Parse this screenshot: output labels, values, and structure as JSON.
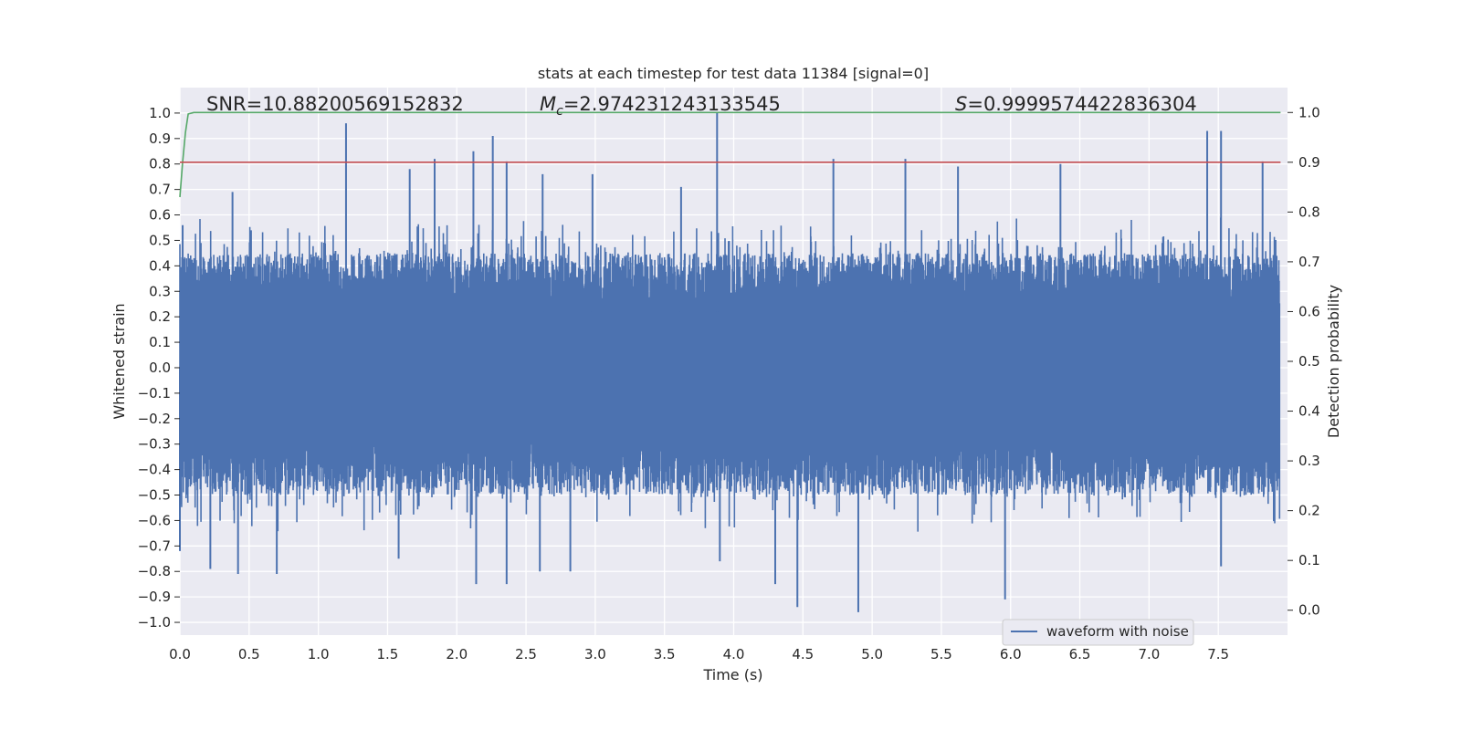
{
  "chart_data": {
    "type": "line",
    "title": "stats at each timestep for test data 11384 [signal=0]",
    "xlabel": "Time (s)",
    "ylabel": "Whitened strain",
    "y2label": "Detection probability",
    "xlim": [
      0.0,
      8.0
    ],
    "ylim": [
      -1.05,
      1.1
    ],
    "y2lim": [
      -0.05,
      1.05
    ],
    "x_ticks": [
      0.0,
      0.5,
      1.0,
      1.5,
      2.0,
      2.5,
      3.0,
      3.5,
      4.0,
      4.5,
      5.0,
      5.5,
      6.0,
      6.5,
      7.0,
      7.5
    ],
    "x_tick_labels": [
      "0.0",
      "0.5",
      "1.0",
      "1.5",
      "2.0",
      "2.5",
      "3.0",
      "3.5",
      "4.0",
      "4.5",
      "5.0",
      "5.5",
      "6.0",
      "6.5",
      "7.0",
      "7.5"
    ],
    "y_ticks": [
      1.0,
      0.9,
      0.8,
      0.7,
      0.6,
      0.5,
      0.4,
      0.3,
      0.2,
      0.1,
      0.0,
      -0.1,
      -0.2,
      -0.3,
      -0.4,
      -0.5,
      -0.6,
      -0.7,
      -0.8,
      -0.9,
      -1.0
    ],
    "y_tick_labels": [
      "1.0",
      "0.9",
      "0.8",
      "0.7",
      "0.6",
      "0.5",
      "0.4",
      "0.3",
      "0.2",
      "0.1",
      "0.0",
      "−0.1",
      "−0.2",
      "−0.3",
      "−0.4",
      "−0.5",
      "−0.6",
      "−0.7",
      "−0.8",
      "−0.9",
      "−1.0"
    ],
    "y2_ticks": [
      1.0,
      0.9,
      0.8,
      0.7,
      0.6,
      0.5,
      0.4,
      0.3,
      0.2,
      0.1,
      0.0
    ],
    "y2_tick_labels": [
      "1.0",
      "0.9",
      "0.8",
      "0.7",
      "0.6",
      "0.5",
      "0.4",
      "0.3",
      "0.2",
      "0.1",
      "0.0"
    ],
    "grid": true,
    "legend_position": "bottom-right",
    "stats": {
      "snr": "SNR=10.88200569152832",
      "mc_symbol": "M",
      "mc_sub": "c",
      "mc_value": "=2.974231243133545",
      "s_symbol": "S",
      "s_value": "=0.9999574422836304"
    },
    "series": [
      {
        "name": "waveform with noise",
        "axis": "left",
        "color": "#4c72b0",
        "envelope_upper_typical": 0.45,
        "envelope_lower_typical": -0.5,
        "dense_band": [
          -0.18,
          0.22
        ],
        "peaks_upper": [
          [
            0.02,
            0.56
          ],
          [
            0.38,
            0.69
          ],
          [
            1.2,
            0.96
          ],
          [
            1.66,
            0.78
          ],
          [
            1.84,
            0.82
          ],
          [
            2.12,
            0.85
          ],
          [
            2.26,
            0.91
          ],
          [
            2.36,
            0.81
          ],
          [
            2.62,
            0.76
          ],
          [
            2.98,
            0.76
          ],
          [
            3.62,
            0.71
          ],
          [
            3.88,
            1.0
          ],
          [
            4.72,
            0.82
          ],
          [
            5.24,
            0.82
          ],
          [
            5.62,
            0.79
          ],
          [
            6.36,
            0.8
          ],
          [
            7.42,
            0.93
          ],
          [
            7.52,
            0.93
          ],
          [
            7.82,
            0.81
          ]
        ],
        "peaks_lower": [
          [
            0.0,
            -0.72
          ],
          [
            0.22,
            -0.79
          ],
          [
            0.42,
            -0.81
          ],
          [
            0.7,
            -0.81
          ],
          [
            1.58,
            -0.75
          ],
          [
            2.14,
            -0.85
          ],
          [
            2.36,
            -0.85
          ],
          [
            2.6,
            -0.8
          ],
          [
            2.82,
            -0.8
          ],
          [
            3.9,
            -0.76
          ],
          [
            4.3,
            -0.85
          ],
          [
            4.46,
            -0.94
          ],
          [
            4.9,
            -0.96
          ],
          [
            5.96,
            -0.91
          ],
          [
            7.52,
            -0.78
          ]
        ]
      },
      {
        "name": "",
        "axis": "right",
        "color": "#55a868",
        "points": [
          [
            0.0,
            0.83
          ],
          [
            0.02,
            0.9
          ],
          [
            0.04,
            0.96
          ],
          [
            0.06,
            0.997
          ],
          [
            0.1,
            1.0
          ],
          [
            7.95,
            1.0
          ]
        ]
      },
      {
        "name": "",
        "axis": "right",
        "color": "#c44e52",
        "points": [
          [
            0.0,
            0.9
          ],
          [
            7.95,
            0.9
          ]
        ]
      }
    ]
  }
}
